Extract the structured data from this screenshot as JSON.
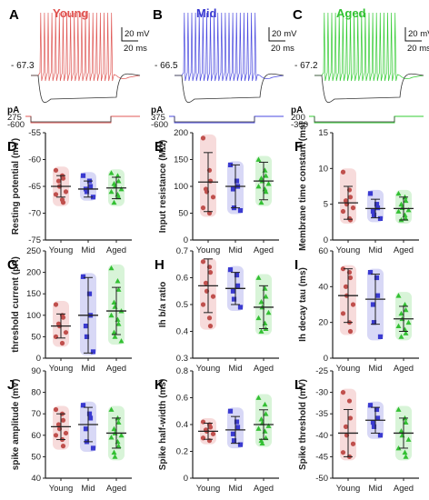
{
  "colors": {
    "young": "#c0504d",
    "mid": "#3a3ad0",
    "aged": "#33c033",
    "young_fill": "#f3cccc",
    "mid_fill": "#c8c8f2",
    "aged_fill": "#c8f0c8",
    "axis": "#222222"
  },
  "traces": [
    {
      "letter": "A",
      "title": "Young",
      "title_color": "#e0504d",
      "color": "#e05a57",
      "rmp": "- 67.3",
      "unit": "pA",
      "steps": [
        "275",
        "-600"
      ],
      "scale": [
        "20 mV",
        "20 ms"
      ]
    },
    {
      "letter": "B",
      "title": "Mid",
      "title_color": "#3a3ad0",
      "color": "#4a4ae0",
      "rmp": "- 66.5",
      "unit": "pA",
      "steps": [
        "375",
        "-600"
      ],
      "scale": [
        "20 mV",
        "20 ms"
      ]
    },
    {
      "letter": "C",
      "title": "Aged",
      "title_color": "#33c033",
      "color": "#33cc33",
      "rmp": "- 67.2",
      "unit": "pA",
      "steps": [
        "200",
        "-350"
      ],
      "scale": [
        "20 mV",
        "20 ms"
      ]
    }
  ],
  "chart_data": [
    {
      "letter": "D",
      "type": "scatter",
      "ylabel": "Resting potential (mV)",
      "ylim": [
        -75,
        -55
      ],
      "yticks": [
        -55,
        -60,
        -65,
        -70,
        -75
      ],
      "categories": [
        "Young",
        "Mid",
        "Aged"
      ],
      "series": [
        {
          "values": [
            -62.0,
            -63.0,
            -63.5,
            -64.0,
            -65.0,
            -66.0,
            -66.5,
            -67.5,
            -68.0
          ],
          "mean": -65.0,
          "sd": 2.0
        },
        {
          "values": [
            -63.0,
            -64.0,
            -65.0,
            -65.5,
            -66.0,
            -67.0
          ],
          "mean": -65.5,
          "sd": 1.5
        },
        {
          "values": [
            -62.5,
            -63.0,
            -64.0,
            -64.5,
            -65.0,
            -65.5,
            -66.0,
            -66.5,
            -67.0,
            -68.0
          ],
          "mean": -65.3,
          "sd": 2.0
        }
      ]
    },
    {
      "letter": "E",
      "type": "scatter",
      "ylabel": "Input resistance (MΩ)",
      "ylim": [
        0,
        200
      ],
      "yticks": [
        0,
        50,
        100,
        150,
        200
      ],
      "categories": [
        "Young",
        "Mid",
        "Aged"
      ],
      "series": [
        {
          "values": [
            190,
            130,
            110,
            95,
            90,
            80,
            60,
            50
          ],
          "mean": 108,
          "sd": 55
        },
        {
          "values": [
            140,
            110,
            100,
            95,
            60,
            55
          ],
          "mean": 100,
          "sd": 40
        },
        {
          "values": [
            150,
            130,
            120,
            115,
            110,
            105,
            100,
            95,
            90,
            70
          ],
          "mean": 110,
          "sd": 35
        }
      ]
    },
    {
      "letter": "F",
      "type": "scatter",
      "ylabel": "Membrane time constant (ms)",
      "ylim": [
        0,
        15
      ],
      "yticks": [
        0,
        5,
        10,
        15
      ],
      "categories": [
        "Young",
        "Mid",
        "Aged"
      ],
      "series": [
        {
          "values": [
            9.5,
            7.0,
            6.0,
            5.5,
            5.0,
            4.5,
            4.0,
            3.0,
            2.8
          ],
          "mean": 5.2,
          "sd": 2.3
        },
        {
          "values": [
            6.5,
            5.0,
            4.5,
            4.0,
            3.5,
            3.0
          ],
          "mean": 4.4,
          "sd": 1.3
        },
        {
          "values": [
            6.5,
            6.0,
            5.5,
            5.0,
            4.5,
            4.2,
            4.0,
            3.5,
            3.0,
            2.8
          ],
          "mean": 4.4,
          "sd": 1.6
        }
      ]
    },
    {
      "letter": "G",
      "type": "scatter",
      "ylabel": "threshold current (pA)",
      "ylim": [
        0,
        250
      ],
      "yticks": [
        0,
        50,
        100,
        150,
        200,
        250
      ],
      "categories": [
        "Young",
        "Mid",
        "Aged"
      ],
      "series": [
        {
          "values": [
            125,
            100,
            95,
            80,
            75,
            60,
            50,
            35
          ],
          "mean": 75,
          "sd": 28
        },
        {
          "values": [
            190,
            150,
            100,
            75,
            50,
            15
          ],
          "mean": 100,
          "sd": 88
        },
        {
          "values": [
            210,
            180,
            160,
            130,
            120,
            110,
            100,
            90,
            80,
            60,
            50,
            40
          ],
          "mean": 110,
          "sd": 55
        }
      ]
    },
    {
      "letter": "H",
      "type": "scatter",
      "ylabel": "Ih b/a ratio",
      "ylim": [
        0.3,
        0.7
      ],
      "yticks": [
        0.3,
        0.4,
        0.5,
        0.6,
        0.7
      ],
      "categories": [
        "Young",
        "Mid",
        "Aged"
      ],
      "series": [
        {
          "values": [
            0.66,
            0.64,
            0.62,
            0.58,
            0.55,
            0.53,
            0.5,
            0.45,
            0.42
          ],
          "mean": 0.57,
          "sd": 0.1
        },
        {
          "values": [
            0.63,
            0.61,
            0.57,
            0.55,
            0.52,
            0.49
          ],
          "mean": 0.56,
          "sd": 0.06
        },
        {
          "values": [
            0.6,
            0.56,
            0.53,
            0.51,
            0.49,
            0.47,
            0.45,
            0.43,
            0.41,
            0.4
          ],
          "mean": 0.49,
          "sd": 0.08
        }
      ]
    },
    {
      "letter": "I",
      "type": "scatter",
      "ylabel": "Ih decay tau (ms)",
      "ylim": [
        0,
        60
      ],
      "yticks": [
        0,
        20,
        40,
        60
      ],
      "categories": [
        "Young",
        "Mid",
        "Aged"
      ],
      "series": [
        {
          "values": [
            50,
            48,
            45,
            40,
            35,
            30,
            25,
            20,
            15
          ],
          "mean": 35,
          "sd": 15
        },
        {
          "values": [
            48,
            45,
            35,
            30,
            20,
            12
          ],
          "mean": 33,
          "sd": 14
        },
        {
          "values": [
            35,
            30,
            27,
            25,
            22,
            20,
            18,
            16,
            14,
            12
          ],
          "mean": 22,
          "sd": 7
        }
      ]
    },
    {
      "letter": "J",
      "type": "scatter",
      "ylabel": "spike amplitude (mV)",
      "ylim": [
        40,
        90
      ],
      "yticks": [
        40,
        50,
        60,
        70,
        80,
        90
      ],
      "categories": [
        "Young",
        "Mid",
        "Aged"
      ],
      "series": [
        {
          "values": [
            72,
            70,
            67,
            65,
            63,
            61,
            60,
            58,
            55
          ],
          "mean": 64,
          "sd": 6
        },
        {
          "values": [
            74,
            70,
            68,
            63,
            57,
            54
          ],
          "mean": 65,
          "sd": 8
        },
        {
          "values": [
            72,
            68,
            66,
            63,
            61,
            60,
            59,
            57,
            55,
            52,
            50
          ],
          "mean": 61,
          "sd": 7
        }
      ]
    },
    {
      "letter": "K",
      "type": "scatter",
      "ylabel": "Spike half-width (ms)",
      "ylim": [
        0,
        0.8
      ],
      "yticks": [
        0.0,
        0.2,
        0.4,
        0.6,
        0.8
      ],
      "categories": [
        "Young",
        "Mid",
        "Aged"
      ],
      "series": [
        {
          "values": [
            0.42,
            0.4,
            0.38,
            0.36,
            0.35,
            0.33,
            0.3,
            0.28
          ],
          "mean": 0.35,
          "sd": 0.06
        },
        {
          "values": [
            0.5,
            0.42,
            0.38,
            0.33,
            0.28,
            0.25
          ],
          "mean": 0.36,
          "sd": 0.1
        },
        {
          "values": [
            0.6,
            0.55,
            0.48,
            0.44,
            0.41,
            0.39,
            0.37,
            0.35,
            0.3,
            0.28,
            0.26
          ],
          "mean": 0.4,
          "sd": 0.11
        }
      ]
    },
    {
      "letter": "L",
      "type": "scatter",
      "ylabel": "Spike threshold (mV)",
      "ylim": [
        -50,
        -25
      ],
      "yticks": [
        -25,
        -30,
        -35,
        -40,
        -45,
        -50
      ],
      "categories": [
        "Young",
        "Mid",
        "Aged"
      ],
      "series": [
        {
          "values": [
            -30,
            -32,
            -36,
            -38,
            -40,
            -42,
            -44,
            -45
          ],
          "mean": -39.5,
          "sd": 5.5
        },
        {
          "values": [
            -33,
            -34,
            -36,
            -37,
            -38,
            -40
          ],
          "mean": -36.5,
          "sd": 3.0
        },
        {
          "values": [
            -34,
            -36,
            -37,
            -39,
            -40,
            -41,
            -43,
            -44,
            -45
          ],
          "mean": -39.5,
          "sd": 3.5
        }
      ]
    }
  ]
}
